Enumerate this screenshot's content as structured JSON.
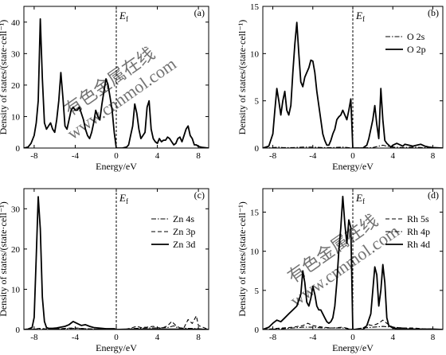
{
  "figure": {
    "watermark": {
      "cn": "有色金属在线",
      "url": "www.cnnmol.com",
      "color": "#bdbdbd"
    }
  },
  "chart_data": [
    {
      "type": "line",
      "panel_label": "(a)",
      "xlabel": "Energy/eV",
      "ylabel": "Density of states/(state·cell⁻¹)",
      "xlim": [
        -9,
        9
      ],
      "ylim": [
        0,
        45
      ],
      "xticks": [
        -8,
        -4,
        0,
        4,
        8
      ],
      "yticks": [
        0,
        10,
        20,
        30,
        40
      ],
      "fermi_label": "E",
      "fermi_sub": "f",
      "fermi_energy": 0,
      "legend": [],
      "series": [
        {
          "name": "",
          "style": "solid",
          "x": [
            -9,
            -8.6,
            -8.3,
            -8.0,
            -7.8,
            -7.6,
            -7.4,
            -7.2,
            -7.0,
            -6.8,
            -6.6,
            -6.4,
            -6.2,
            -6.0,
            -5.8,
            -5.6,
            -5.4,
            -5.2,
            -5.0,
            -4.8,
            -4.6,
            -4.4,
            -4.2,
            -4.0,
            -3.8,
            -3.6,
            -3.4,
            -3.2,
            -3.0,
            -2.8,
            -2.6,
            -2.4,
            -2.2,
            -2.0,
            -1.8,
            -1.6,
            -1.4,
            -1.2,
            -1.0,
            -0.8,
            -0.6,
            -0.4,
            -0.2,
            0.0,
            0.2,
            0.6,
            1.0,
            1.2,
            1.4,
            1.6,
            1.8,
            2.0,
            2.2,
            2.4,
            2.6,
            2.8,
            3.0,
            3.2,
            3.4,
            3.6,
            3.8,
            4.0,
            4.2,
            4.4,
            4.6,
            4.8,
            5.0,
            5.2,
            5.4,
            5.6,
            5.8,
            6.0,
            6.2,
            6.4,
            6.6,
            6.8,
            7.0,
            7.2,
            7.4,
            7.6,
            7.8,
            8.0,
            8.4,
            9.0
          ],
          "y": [
            0,
            0.3,
            1.5,
            4,
            8,
            15,
            41,
            22,
            8,
            6,
            7,
            8,
            6,
            5,
            9,
            15,
            24,
            16,
            7,
            6,
            9,
            12,
            13,
            12,
            12,
            13,
            11,
            9,
            6,
            4,
            3,
            5,
            8,
            12,
            10,
            9,
            14,
            18,
            22,
            20,
            16,
            12,
            5,
            0,
            0,
            0,
            0.3,
            1,
            4,
            7,
            14,
            11,
            6,
            3,
            4,
            5,
            13,
            15,
            6,
            3,
            2,
            1.5,
            3,
            2,
            2.5,
            2.5,
            3.5,
            3,
            2,
            1,
            1.5,
            3,
            3.5,
            2,
            4,
            6,
            7,
            4,
            3,
            1,
            1,
            0.5,
            0.2,
            0
          ]
        }
      ]
    },
    {
      "type": "line",
      "panel_label": "(b)",
      "xlabel": "Energy/eV",
      "ylabel": "Density of states/(state·cell⁻¹)",
      "xlim": [
        -9,
        9
      ],
      "ylim": [
        0,
        15
      ],
      "xticks": [
        -8,
        -4,
        0,
        4,
        8
      ],
      "yticks": [
        0,
        5,
        10,
        15
      ],
      "fermi_label": "E",
      "fermi_sub": "f",
      "fermi_energy": 0,
      "legend": [
        "O 2s",
        "O 2p"
      ],
      "series": [
        {
          "name": "O 2s",
          "style": "dashdot",
          "x": [
            -9,
            -8,
            -7.4,
            -7.0,
            -6.0,
            -5.0,
            -4.0,
            -3.0,
            -2.0,
            -1.0,
            0.0,
            2.0,
            2.6,
            3.0,
            3.4,
            4.0,
            5.0,
            6.0,
            7.0,
            8.0,
            9.0
          ],
          "y": [
            0,
            0.05,
            0.1,
            0.05,
            0.05,
            0.1,
            0.1,
            0.05,
            0.05,
            0.1,
            0,
            0.05,
            0.2,
            0.3,
            0.2,
            0.1,
            0.05,
            0.1,
            0.05,
            0.05,
            0
          ]
        },
        {
          "name": "O 2p",
          "style": "solid",
          "x": [
            -9,
            -8.4,
            -8.0,
            -7.8,
            -7.6,
            -7.4,
            -7.2,
            -7.0,
            -6.8,
            -6.6,
            -6.4,
            -6.2,
            -6.0,
            -5.8,
            -5.6,
            -5.4,
            -5.2,
            -5.0,
            -4.8,
            -4.6,
            -4.4,
            -4.2,
            -4.0,
            -3.8,
            -3.6,
            -3.4,
            -3.2,
            -3.0,
            -2.8,
            -2.6,
            -2.4,
            -2.2,
            -2.0,
            -1.8,
            -1.6,
            -1.4,
            -1.2,
            -1.0,
            -0.8,
            -0.6,
            -0.4,
            -0.2,
            0.0,
            0.4,
            1.0,
            1.4,
            1.6,
            1.8,
            2.0,
            2.2,
            2.4,
            2.6,
            2.8,
            3.0,
            3.2,
            3.4,
            3.6,
            3.8,
            4.0,
            4.4,
            4.8,
            5.0,
            5.2,
            5.6,
            6.0,
            6.4,
            6.8,
            7.2,
            7.6,
            8.0,
            9.0
          ],
          "y": [
            0,
            0.2,
            1.5,
            4,
            6.3,
            5,
            3.5,
            5,
            6,
            4,
            3.5,
            4.5,
            8,
            11,
            13.3,
            10,
            7,
            6.5,
            7.5,
            8,
            8.5,
            9.3,
            9.2,
            8,
            6,
            4.5,
            3,
            1.5,
            0.8,
            0.3,
            0.3,
            0.8,
            1.5,
            2,
            3,
            3.3,
            3.5,
            4,
            3.5,
            3,
            4,
            5.2,
            0,
            0,
            0,
            0.3,
            1,
            2,
            3,
            4.5,
            2.5,
            1,
            6.3,
            3,
            0.8,
            0.5,
            0.3,
            0.1,
            0.3,
            0.5,
            0.3,
            0.2,
            0.4,
            0.3,
            0.2,
            0.3,
            0.4,
            0.2,
            0.1,
            0.05,
            0
          ]
        }
      ]
    },
    {
      "type": "line",
      "panel_label": "(c)",
      "xlabel": "Energy/eV",
      "ylabel": "Density of states/(state·cell⁻¹)",
      "xlim": [
        -9,
        9
      ],
      "ylim": [
        0,
        35
      ],
      "xticks": [
        -8,
        -4,
        0,
        4,
        8
      ],
      "yticks": [
        0,
        10,
        20,
        30
      ],
      "fermi_label": "E",
      "fermi_sub": "f",
      "fermi_energy": 0,
      "legend": [
        "Zn 4s",
        "Zn 3p",
        "Zn 3d"
      ],
      "series": [
        {
          "name": "Zn 4s",
          "style": "dashdot",
          "x": [
            -9,
            -8,
            -7.5,
            -7.0,
            -6.0,
            -5.0,
            -4.0,
            -3.0,
            -2.0,
            -1.0,
            0.0,
            1.0,
            2.0,
            3.0,
            4.0,
            5.0,
            5.6,
            6.0,
            7.0,
            8.0,
            9.0
          ],
          "y": [
            0,
            0.1,
            0.2,
            0.1,
            0.1,
            0.2,
            0.3,
            0.2,
            0.1,
            0.1,
            0,
            0.1,
            0.3,
            0.4,
            0.4,
            0.5,
            0.9,
            0.4,
            0.3,
            0.2,
            0
          ]
        },
        {
          "name": "Zn 3p",
          "style": "dashed",
          "x": [
            -9,
            -8,
            -7.5,
            -7.0,
            -6.0,
            -5.0,
            -4.0,
            -3.0,
            -2.0,
            -1.0,
            0.0,
            1.0,
            1.6,
            2.0,
            2.4,
            3.0,
            3.6,
            4.0,
            4.4,
            5.0,
            5.4,
            5.8,
            6.2,
            6.6,
            7.0,
            7.4,
            7.8,
            8.0,
            9.0
          ],
          "y": [
            0,
            0.1,
            0.3,
            0.2,
            0.1,
            0.3,
            0.4,
            0.2,
            0.1,
            0.1,
            0,
            0.1,
            0.5,
            0.8,
            0.5,
            0.6,
            0.8,
            0.5,
            0.3,
            0.9,
            2,
            1,
            0.4,
            0.5,
            2.5,
            1.5,
            3.4,
            1,
            0
          ]
        },
        {
          "name": "Zn 3d",
          "style": "solid",
          "x": [
            -9,
            -8.6,
            -8.2,
            -8.0,
            -7.8,
            -7.6,
            -7.4,
            -7.2,
            -7.0,
            -6.8,
            -6.6,
            -6.2,
            -5.8,
            -5.4,
            -5.0,
            -4.6,
            -4.2,
            -3.8,
            -3.4,
            -3.0,
            -2.6,
            -2.2,
            -1.8,
            -1.4,
            -1.0,
            -0.6,
            -0.2,
            0.0,
            1.0,
            2.0,
            3.0,
            4.0,
            5.0,
            6.0,
            7.0,
            8.0,
            9.0
          ],
          "y": [
            0,
            0.1,
            0.5,
            3,
            18,
            33,
            25,
            8,
            2,
            0.5,
            0.3,
            0.3,
            0.4,
            0.6,
            0.8,
            1.2,
            2,
            1.5,
            1,
            1.2,
            0.8,
            0.5,
            0.4,
            0.3,
            0.2,
            0.2,
            0.2,
            0,
            0.05,
            0.05,
            0.05,
            0.05,
            0.05,
            0.05,
            0.05,
            0.05,
            0
          ]
        }
      ]
    },
    {
      "type": "line",
      "panel_label": "(d)",
      "xlabel": "Energy/eV",
      "ylabel": "Density of states/(state·cell⁻¹)",
      "xlim": [
        -9,
        9
      ],
      "ylim": [
        0,
        18
      ],
      "xticks": [
        -8,
        -4,
        0,
        4,
        8
      ],
      "yticks": [
        0,
        5,
        10,
        15
      ],
      "fermi_label": "E",
      "fermi_sub": "f",
      "fermi_energy": 0,
      "legend": [
        "Rh 5s",
        "Rh 4p",
        "Rh 4d"
      ],
      "series": [
        {
          "name": "Rh 5s",
          "style": "dashed",
          "x": [
            -9,
            -8,
            -7.0,
            -6.0,
            -5.0,
            -4.5,
            -4.0,
            -3.0,
            -2.0,
            -1.0,
            0.0,
            1.0,
            1.6,
            2.0,
            2.6,
            3.0,
            3.6,
            4.0,
            5.0,
            6.0,
            7.0,
            8.0,
            9.0
          ],
          "y": [
            0,
            0.1,
            0.2,
            0.3,
            0.5,
            0.8,
            0.5,
            0.3,
            0.2,
            0.3,
            0,
            0.2,
            0.6,
            0.5,
            0.8,
            1.2,
            0.6,
            0.3,
            0.2,
            0.2,
            0.1,
            0.05,
            0
          ]
        },
        {
          "name": "Rh 4p",
          "style": "dashdot",
          "x": [
            -9,
            -8,
            -7.0,
            -6.0,
            -5.0,
            -4.0,
            -3.0,
            -2.0,
            -1.0,
            0.0,
            1.0,
            2.0,
            3.0,
            4.0,
            5.0,
            6.0,
            7.0,
            8.0,
            9.0
          ],
          "y": [
            0,
            0.05,
            0.1,
            0.2,
            0.3,
            0.3,
            0.2,
            0.2,
            0.2,
            0,
            0.2,
            0.3,
            0.4,
            0.3,
            0.2,
            0.1,
            0.05,
            0.05,
            0
          ]
        },
        {
          "name": "Rh 4d",
          "style": "solid",
          "x": [
            -9,
            -8.4,
            -8.0,
            -7.6,
            -7.2,
            -6.8,
            -6.4,
            -6.0,
            -5.6,
            -5.2,
            -5.0,
            -4.8,
            -4.6,
            -4.4,
            -4.2,
            -4.0,
            -3.8,
            -3.6,
            -3.4,
            -3.2,
            -3.0,
            -2.8,
            -2.6,
            -2.4,
            -2.2,
            -2.0,
            -1.8,
            -1.6,
            -1.4,
            -1.2,
            -1.0,
            -0.8,
            -0.6,
            -0.4,
            -0.2,
            0.0,
            0.4,
            1.0,
            1.4,
            1.8,
            2.0,
            2.2,
            2.4,
            2.6,
            2.8,
            3.0,
            3.2,
            3.4,
            3.6,
            4.0,
            4.4,
            5.0,
            6.0,
            7.0,
            8.0,
            9.0
          ],
          "y": [
            0,
            0.3,
            0.8,
            1.2,
            1.0,
            1.5,
            2,
            2.5,
            3,
            4.5,
            7.5,
            6,
            3.5,
            3,
            4,
            5.5,
            4.5,
            3,
            2.5,
            2.5,
            2,
            1.5,
            1,
            0.8,
            1,
            1.5,
            3,
            6,
            10,
            13,
            17,
            13.5,
            11,
            14,
            13,
            0,
            0,
            0,
            0.5,
            2,
            5,
            8,
            7,
            3,
            5,
            8.3,
            6,
            1.5,
            0.5,
            0.2,
            0.1,
            0.05,
            0.05,
            0.05,
            0.05,
            0
          ]
        }
      ]
    }
  ]
}
